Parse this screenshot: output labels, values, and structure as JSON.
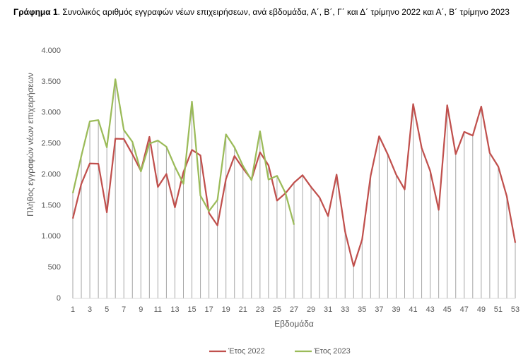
{
  "chart_data": {
    "type": "line",
    "title": {
      "label": "Γράφημα 1",
      "text": ". Συνολικός αριθμός εγγραφών νέων επιχειρήσεων, ανά εβδομάδα, Α΄, Β΄, Γ΄ και Δ΄ τρίμηνο 2022 και Α΄, Β΄ τρίμηνο 2023"
    },
    "x_label": "Εβδομάδα",
    "y_label": "Πλήθος εγγραφών νέων επιχειρήσεων",
    "x": [
      1,
      2,
      3,
      4,
      5,
      6,
      7,
      8,
      9,
      10,
      11,
      12,
      13,
      14,
      15,
      16,
      17,
      18,
      19,
      20,
      21,
      22,
      23,
      24,
      25,
      26,
      27,
      28,
      29,
      30,
      31,
      32,
      33,
      34,
      35,
      36,
      37,
      38,
      39,
      40,
      41,
      42,
      43,
      44,
      45,
      46,
      47,
      48,
      49,
      50,
      51,
      52,
      53
    ],
    "xlim": [
      1,
      53
    ],
    "xticks": [
      1,
      3,
      5,
      7,
      9,
      11,
      13,
      15,
      17,
      19,
      21,
      23,
      25,
      27,
      29,
      31,
      33,
      35,
      37,
      39,
      41,
      43,
      45,
      47,
      49,
      51,
      53
    ],
    "ylim": [
      0,
      4000
    ],
    "yticks": [
      0,
      500,
      {
        "value": 1000,
        "label": "1.000"
      },
      {
        "value": 1500,
        "label": "1.500"
      },
      {
        "value": 2000,
        "label": "2.000"
      },
      {
        "value": 2500,
        "label": "2.500"
      },
      {
        "value": 3000,
        "label": "3.000"
      },
      {
        "value": 3500,
        "label": "3.500"
      },
      {
        "value": 4000,
        "label": "4.000"
      }
    ],
    "drop_lines": true,
    "legend": "bottom",
    "series": [
      {
        "name": "Έτος 2022",
        "color": "#c0504d",
        "values": [
          1290,
          1850,
          2180,
          2175,
          1390,
          2580,
          2575,
          2330,
          2060,
          2610,
          1800,
          2010,
          1470,
          2040,
          2400,
          2310,
          1380,
          1180,
          1930,
          2300,
          2100,
          1920,
          2360,
          2150,
          1580,
          1700,
          1870,
          1990,
          1800,
          1630,
          1330,
          2000,
          1080,
          520,
          950,
          1980,
          2620,
          2330,
          2000,
          1760,
          3140,
          2430,
          2060,
          1430,
          3120,
          2330,
          2690,
          2630,
          3100,
          2350,
          2130,
          1650,
          900
        ]
      },
      {
        "name": "Έτος 2023",
        "color": "#9bbb59",
        "values": [
          1700,
          2300,
          2860,
          2880,
          2440,
          3540,
          2720,
          2530,
          2050,
          2500,
          2550,
          2450,
          2130,
          1850,
          3180,
          1660,
          1410,
          1590,
          2650,
          2440,
          2140,
          1910,
          2700,
          1920,
          1980,
          1700,
          1190,
          null,
          null,
          null,
          null,
          null,
          null,
          null,
          null,
          null,
          null,
          null,
          null,
          null,
          null,
          null,
          null,
          null,
          null,
          null,
          null,
          null,
          null,
          null,
          null,
          null,
          null
        ]
      }
    ]
  }
}
